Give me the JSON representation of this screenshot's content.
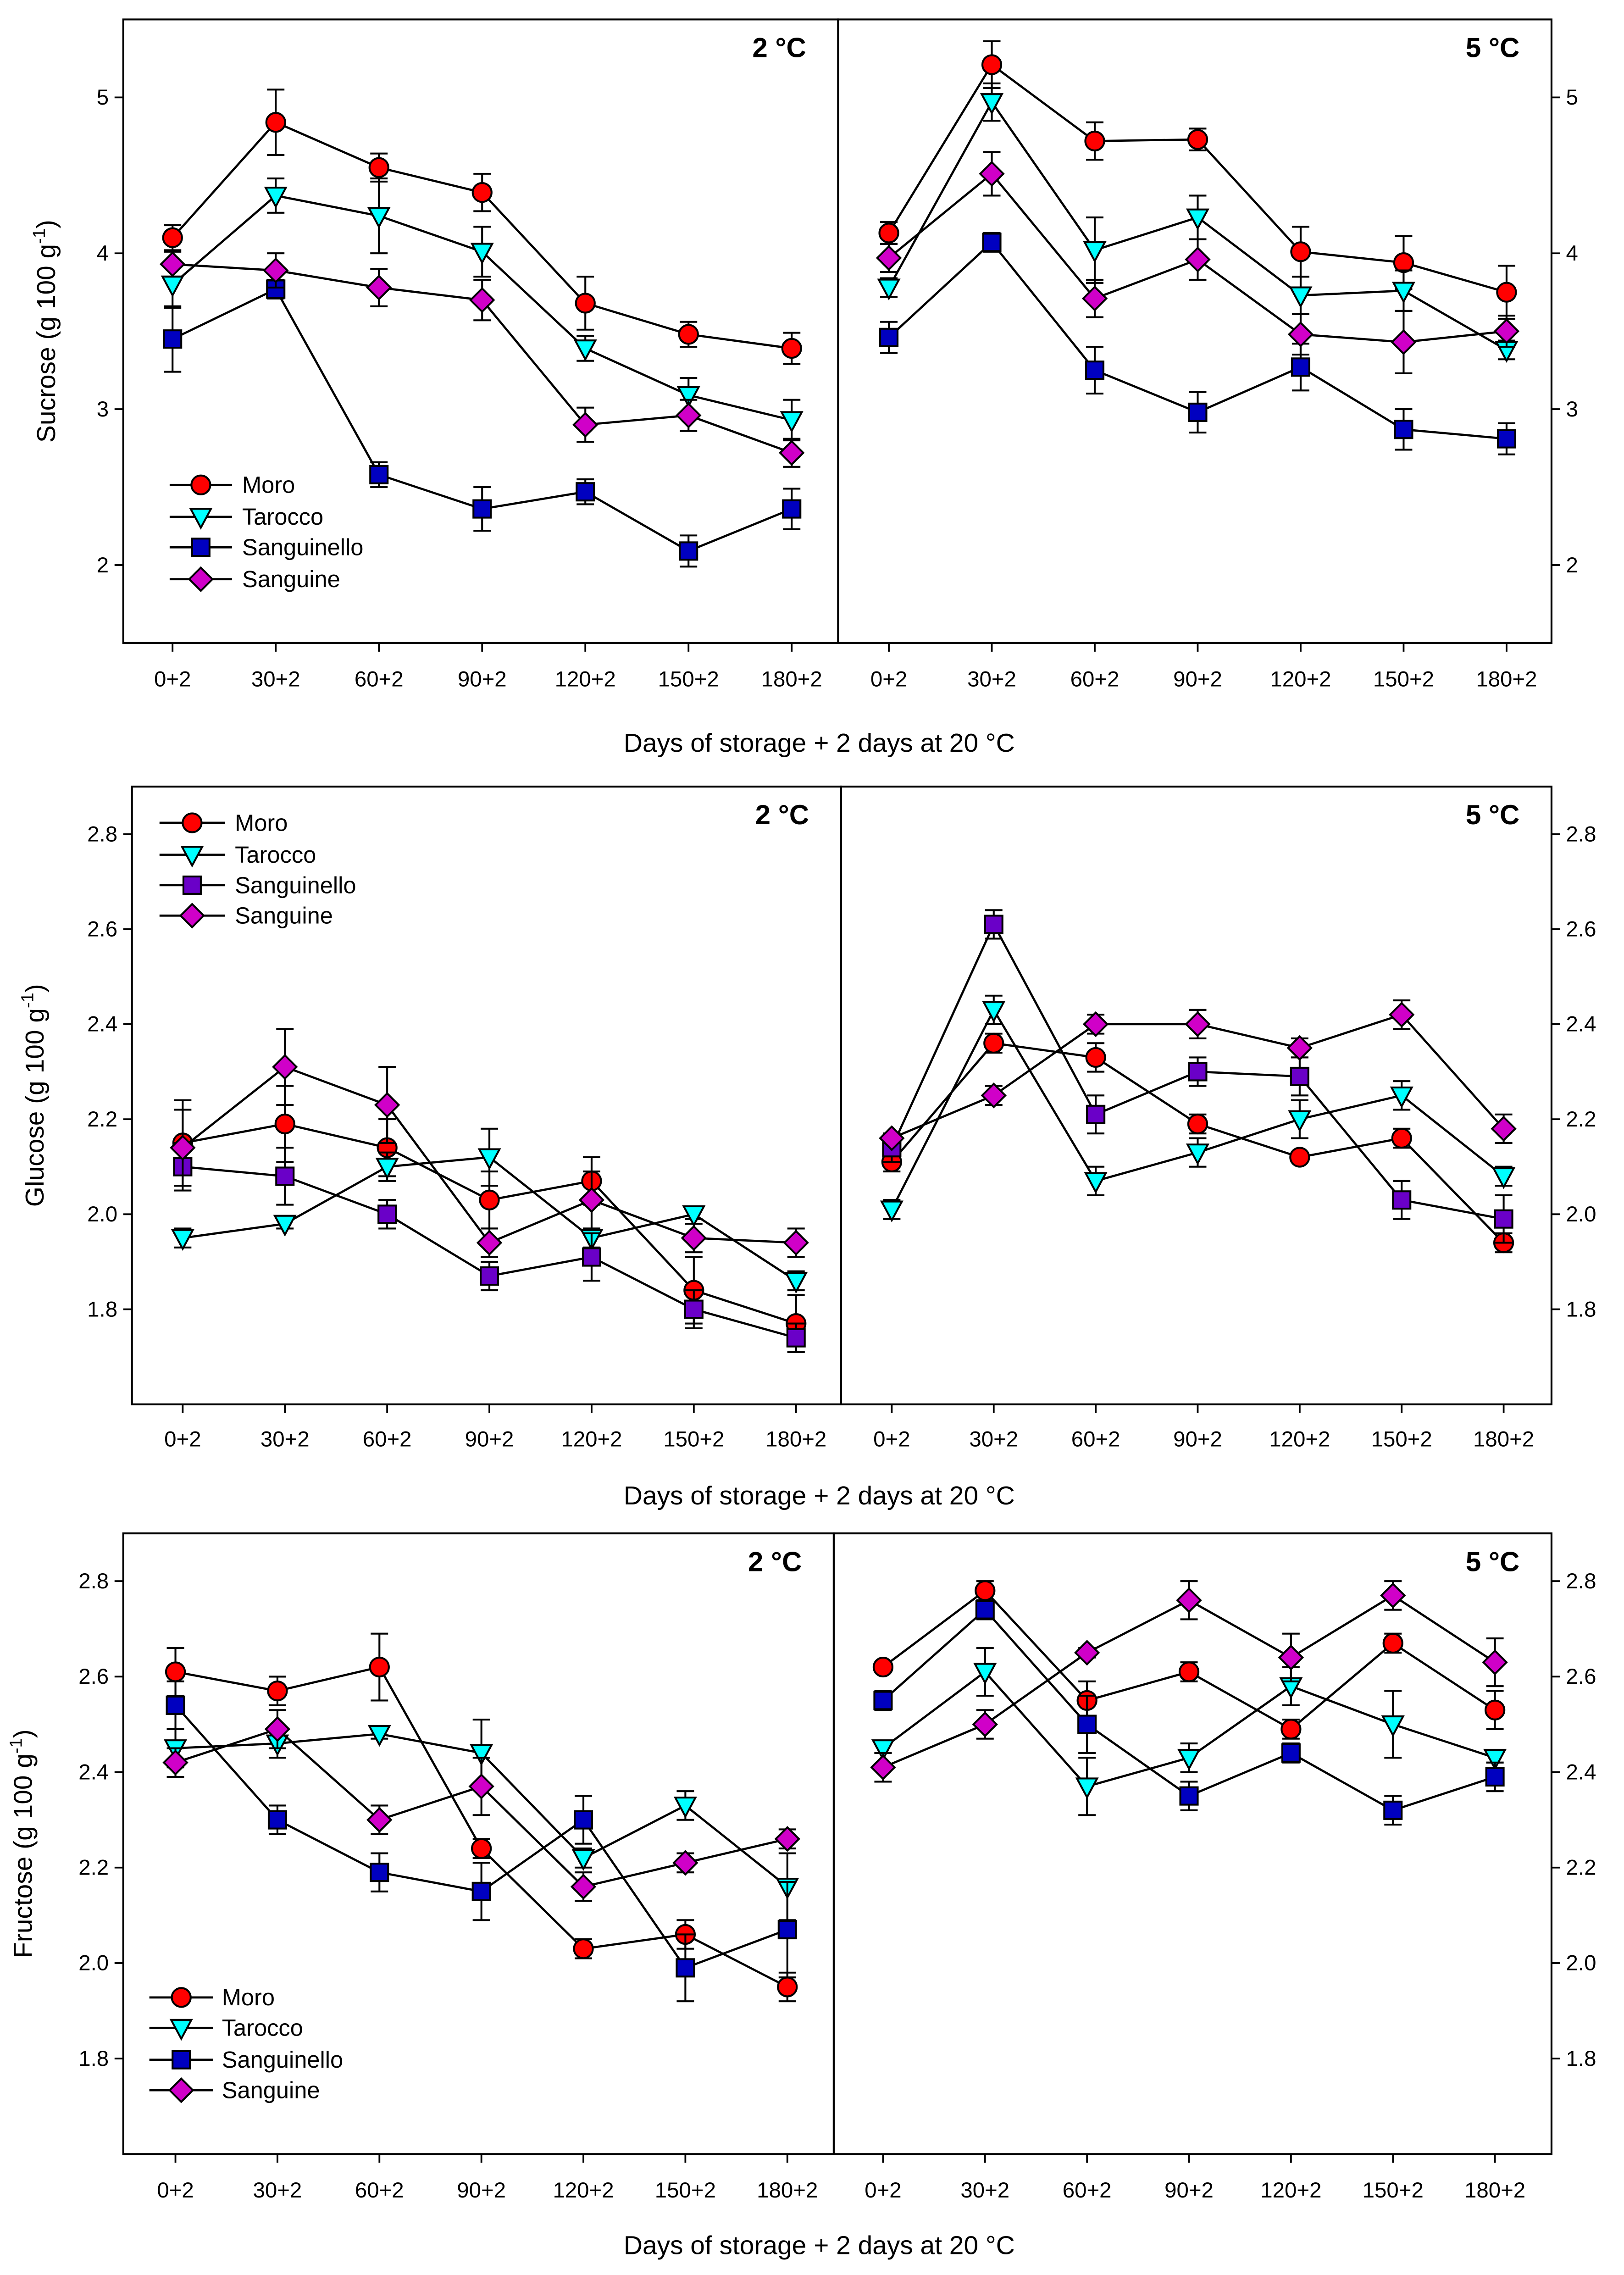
{
  "chart_data": [
    {
      "type": "line",
      "ylabel": {
        "main": "Sucrose (g 100 g",
        "sup": "-1",
        "end": ")"
      },
      "xlabel": "Days of storage + 2 days at 20 °C",
      "categories": [
        "0+2",
        "30+2",
        "60+2",
        "90+2",
        "120+2",
        "150+2",
        "180+2"
      ],
      "ylim": [
        1.5,
        5.5
      ],
      "yticks": [
        2,
        3,
        4,
        5
      ],
      "ytick_labels": [
        "2",
        "3",
        "4",
        "5"
      ],
      "legend_position": "bottom-left",
      "panels": [
        {
          "label": "2 °C",
          "series": [
            {
              "name": "Moro",
              "marker": "circle",
              "color": "#ff0000",
              "values": [
                4.1,
                4.84,
                4.55,
                4.39,
                3.68,
                3.48,
                3.39
              ],
              "err": [
                0.08,
                0.21,
                0.09,
                0.12,
                0.17,
                0.08,
                0.1
              ]
            },
            {
              "name": "Tarocco",
              "marker": "triangle-down",
              "color": "#00ffff",
              "values": [
                3.8,
                4.37,
                4.24,
                4.01,
                3.39,
                3.09,
                2.93
              ],
              "err": [
                0.15,
                0.11,
                0.24,
                0.16,
                0.08,
                0.11,
                0.13
              ]
            },
            {
              "name": "Sanguinello",
              "marker": "square",
              "color": "#0000c0",
              "values": [
                3.45,
                3.77,
                2.58,
                2.36,
                2.47,
                2.09,
                2.36
              ],
              "err": [
                0.21,
                0.06,
                0.08,
                0.14,
                0.08,
                0.1,
                0.13
              ]
            },
            {
              "name": "Sanguine",
              "marker": "diamond",
              "color": "#d000c8",
              "values": [
                3.93,
                3.89,
                3.78,
                3.7,
                2.9,
                2.96,
                2.72
              ],
              "err": [
                0.08,
                0.11,
                0.12,
                0.13,
                0.11,
                0.1,
                0.09
              ]
            }
          ]
        },
        {
          "label": "5 °C",
          "series": [
            {
              "name": "Moro",
              "marker": "circle",
              "color": "#ff0000",
              "values": [
                4.13,
                5.21,
                4.72,
                4.73,
                4.01,
                3.94,
                3.75
              ],
              "err": [
                0.07,
                0.15,
                0.12,
                0.07,
                0.16,
                0.17,
                0.17
              ]
            },
            {
              "name": "Tarocco",
              "marker": "triangle-down",
              "color": "#00ffff",
              "values": [
                3.78,
                4.97,
                4.02,
                4.23,
                3.73,
                3.76,
                3.38
              ],
              "err": [
                0.06,
                0.12,
                0.21,
                0.14,
                0.12,
                0.13,
                0.06
              ]
            },
            {
              "name": "Sanguinello",
              "marker": "square",
              "color": "#0000c0",
              "values": [
                3.46,
                4.07,
                3.25,
                2.98,
                3.27,
                2.87,
                2.81
              ],
              "err": [
                0.1,
                0.06,
                0.15,
                0.13,
                0.15,
                0.13,
                0.1
              ]
            },
            {
              "name": "Sanguine",
              "marker": "diamond",
              "color": "#d000c8",
              "values": [
                3.97,
                4.51,
                3.71,
                3.96,
                3.48,
                3.43,
                3.5
              ],
              "err": [
                0.09,
                0.14,
                0.12,
                0.13,
                0.13,
                0.2,
                0.1
              ]
            }
          ]
        }
      ]
    },
    {
      "type": "line",
      "ylabel": {
        "main": "Glucose (g 100 g",
        "sup": "-1",
        "end": ")"
      },
      "xlabel": "Days of storage + 2 days at 20 °C",
      "categories": [
        "0+2",
        "30+2",
        "60+2",
        "90+2",
        "120+2",
        "150+2",
        "180+2"
      ],
      "ylim": [
        1.6,
        2.9
      ],
      "yticks": [
        1.8,
        2.0,
        2.2,
        2.4,
        2.6,
        2.8
      ],
      "ytick_labels": [
        "1.8",
        "2.0",
        "2.2",
        "2.4",
        "2.6",
        "2.8"
      ],
      "legend_position": "top-left",
      "panels": [
        {
          "label": "2 °C",
          "series": [
            {
              "name": "Moro",
              "marker": "circle",
              "color": "#ff0000",
              "values": [
                2.15,
                2.19,
                2.14,
                2.03,
                2.07,
                1.84,
                1.77
              ],
              "err": [
                0.09,
                0.08,
                0.06,
                0.06,
                0.05,
                0.07,
                0.06
              ]
            },
            {
              "name": "Tarocco",
              "marker": "triangle-down",
              "color": "#00ffff",
              "values": [
                1.95,
                1.98,
                2.1,
                2.12,
                1.95,
                2.0,
                1.86
              ],
              "err": [
                0.02,
                0.01,
                0.03,
                0.06,
                0.02,
                0.01,
                0.02
              ]
            },
            {
              "name": "Sanguinello",
              "marker": "square",
              "color": "#6a00c8",
              "values": [
                2.1,
                2.08,
                2.0,
                1.87,
                1.91,
                1.8,
                1.74
              ],
              "err": [
                0.05,
                0.06,
                0.03,
                0.03,
                0.05,
                0.04,
                0.03
              ]
            },
            {
              "name": "Sanguine",
              "marker": "diamond",
              "color": "#d000c8",
              "values": [
                2.14,
                2.31,
                2.23,
                1.94,
                2.03,
                1.95,
                1.94
              ],
              "err": [
                0.08,
                0.08,
                0.08,
                0.03,
                0.06,
                0.03,
                0.03
              ]
            }
          ]
        },
        {
          "label": "5 °C",
          "series": [
            {
              "name": "Moro",
              "marker": "circle",
              "color": "#ff0000",
              "values": [
                2.11,
                2.36,
                2.33,
                2.19,
                2.12,
                2.16,
                1.94
              ],
              "err": [
                0.02,
                0.02,
                0.03,
                0.02,
                0.01,
                0.02,
                0.02
              ]
            },
            {
              "name": "Tarocco",
              "marker": "triangle-down",
              "color": "#00ffff",
              "values": [
                2.01,
                2.43,
                2.07,
                2.13,
                2.2,
                2.25,
                2.08
              ],
              "err": [
                0.02,
                0.03,
                0.03,
                0.03,
                0.04,
                0.03,
                0.02
              ]
            },
            {
              "name": "Sanguinello",
              "marker": "square",
              "color": "#6a00c8",
              "values": [
                2.14,
                2.61,
                2.21,
                2.3,
                2.29,
                2.03,
                1.99
              ],
              "err": [
                0.03,
                0.03,
                0.04,
                0.03,
                0.04,
                0.04,
                0.05
              ]
            },
            {
              "name": "Sanguine",
              "marker": "diamond",
              "color": "#d000c8",
              "values": [
                2.16,
                2.25,
                2.4,
                2.4,
                2.35,
                2.42,
                2.18
              ],
              "err": [
                0.01,
                0.02,
                0.02,
                0.03,
                0.02,
                0.03,
                0.03
              ]
            }
          ]
        }
      ]
    },
    {
      "type": "line",
      "ylabel": {
        "main": "Fructose (g 100 g",
        "sup": "-1",
        "end": ")"
      },
      "xlabel": "Days of storage + 2 days at 20 °C",
      "categories": [
        "0+2",
        "30+2",
        "60+2",
        "90+2",
        "120+2",
        "150+2",
        "180+2"
      ],
      "ylim": [
        1.6,
        2.9
      ],
      "yticks": [
        1.8,
        2.0,
        2.2,
        2.4,
        2.6,
        2.8
      ],
      "ytick_labels": [
        "1.8",
        "2.0",
        "2.2",
        "2.4",
        "2.6",
        "2.8"
      ],
      "legend_position": "bottom-left",
      "panels": [
        {
          "label": "2 °C",
          "series": [
            {
              "name": "Moro",
              "marker": "circle",
              "color": "#ff0000",
              "values": [
                2.61,
                2.57,
                2.62,
                2.24,
                2.03,
                2.06,
                1.95
              ],
              "err": [
                0.05,
                0.03,
                0.07,
                0.02,
                0.02,
                0.03,
                0.03
              ]
            },
            {
              "name": "Tarocco",
              "marker": "triangle-down",
              "color": "#00ffff",
              "values": [
                2.45,
                2.46,
                2.48,
                2.44,
                2.22,
                2.33,
                2.16
              ],
              "err": [
                0.04,
                0.03,
                0.01,
                0.07,
                0.02,
                0.03,
                0.07
              ]
            },
            {
              "name": "Sanguinello",
              "marker": "square",
              "color": "#0000c0",
              "values": [
                2.54,
                2.3,
                2.19,
                2.15,
                2.3,
                1.99,
                2.07
              ],
              "err": [
                0.05,
                0.03,
                0.04,
                0.06,
                0.05,
                0.07,
                0.1
              ]
            },
            {
              "name": "Sanguine",
              "marker": "diamond",
              "color": "#d000c8",
              "values": [
                2.42,
                2.49,
                2.3,
                2.37,
                2.16,
                2.21,
                2.26
              ],
              "err": [
                0.03,
                0.04,
                0.03,
                0.06,
                0.03,
                0.02,
                0.02
              ]
            }
          ]
        },
        {
          "label": "5 °C",
          "series": [
            {
              "name": "Moro",
              "marker": "circle",
              "color": "#ff0000",
              "values": [
                2.62,
                2.78,
                2.55,
                2.61,
                2.49,
                2.67,
                2.53
              ],
              "err": [
                0.01,
                0.02,
                0.04,
                0.02,
                0.02,
                0.02,
                0.04
              ]
            },
            {
              "name": "Tarocco",
              "marker": "triangle-down",
              "color": "#00ffff",
              "values": [
                2.45,
                2.61,
                2.37,
                2.43,
                2.58,
                2.5,
                2.43
              ],
              "err": [
                0.01,
                0.05,
                0.06,
                0.03,
                0.04,
                0.07,
                0.01
              ]
            },
            {
              "name": "Sanguinello",
              "marker": "square",
              "color": "#0000c0",
              "values": [
                2.55,
                2.74,
                2.5,
                2.35,
                2.44,
                2.32,
                2.39
              ],
              "err": [
                0.02,
                0.02,
                0.06,
                0.03,
                0.02,
                0.03,
                0.03
              ]
            },
            {
              "name": "Sanguine",
              "marker": "diamond",
              "color": "#d000c8",
              "values": [
                2.41,
                2.5,
                2.65,
                2.76,
                2.64,
                2.77,
                2.63
              ],
              "err": [
                0.03,
                0.03,
                0.01,
                0.04,
                0.05,
                0.03,
                0.05
              ]
            }
          ]
        }
      ]
    }
  ]
}
